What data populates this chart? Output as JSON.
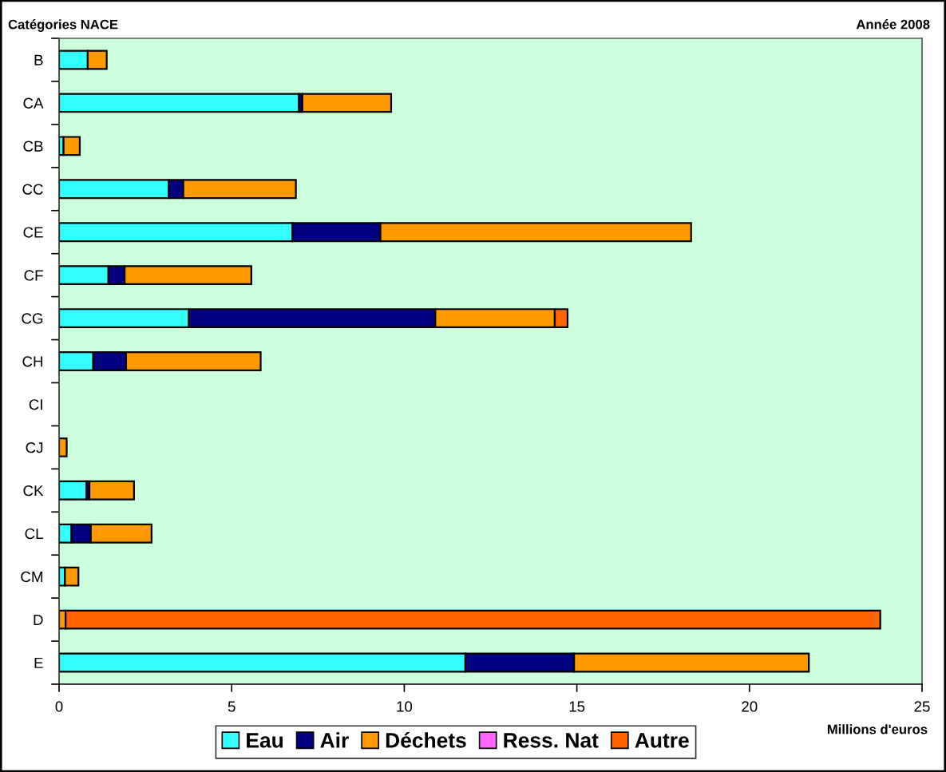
{
  "chart_data": {
    "type": "bar",
    "orientation": "horizontal",
    "stacked": true,
    "title": "Année 2008",
    "ylabel": "Catégories NACE",
    "xlabel": "Millions d'euros",
    "categories": [
      "B",
      "CA",
      "CB",
      "CC",
      "CE",
      "CF",
      "CG",
      "CH",
      "CI",
      "CJ",
      "CK",
      "CL",
      "CM",
      "D",
      "E"
    ],
    "series": [
      {
        "name": "Eau",
        "color": "#33ffff",
        "values": [
          0.83,
          6.95,
          0.13,
          3.18,
          6.76,
          1.43,
          3.76,
          0.99,
          null,
          null,
          0.79,
          0.36,
          0.17,
          null,
          11.77
        ]
      },
      {
        "name": "Air",
        "color": "#000080",
        "values": [
          null,
          0.1,
          null,
          0.42,
          2.55,
          0.47,
          7.14,
          0.95,
          null,
          null,
          0.09,
          0.56,
          null,
          null,
          3.15
        ]
      },
      {
        "name": "Déchets",
        "color": "#ff9900",
        "values": [
          0.55,
          2.57,
          0.47,
          3.26,
          9.0,
          3.67,
          3.46,
          3.9,
          null,
          0.22,
          1.29,
          1.76,
          0.39,
          0.19,
          6.8
        ]
      },
      {
        "name": "Ress. Nat",
        "color": "#ff66ff",
        "values": [
          null,
          null,
          null,
          null,
          null,
          null,
          null,
          null,
          null,
          null,
          null,
          null,
          null,
          null,
          null
        ]
      },
      {
        "name": "Autre",
        "color": "#ff6600",
        "values": [
          null,
          null,
          null,
          null,
          null,
          null,
          0.37,
          null,
          null,
          null,
          null,
          null,
          null,
          23.6,
          null
        ]
      }
    ],
    "xlim": [
      0,
      25
    ],
    "xticks": [
      0,
      5,
      10,
      15,
      20,
      25
    ],
    "legend": "bottom"
  }
}
